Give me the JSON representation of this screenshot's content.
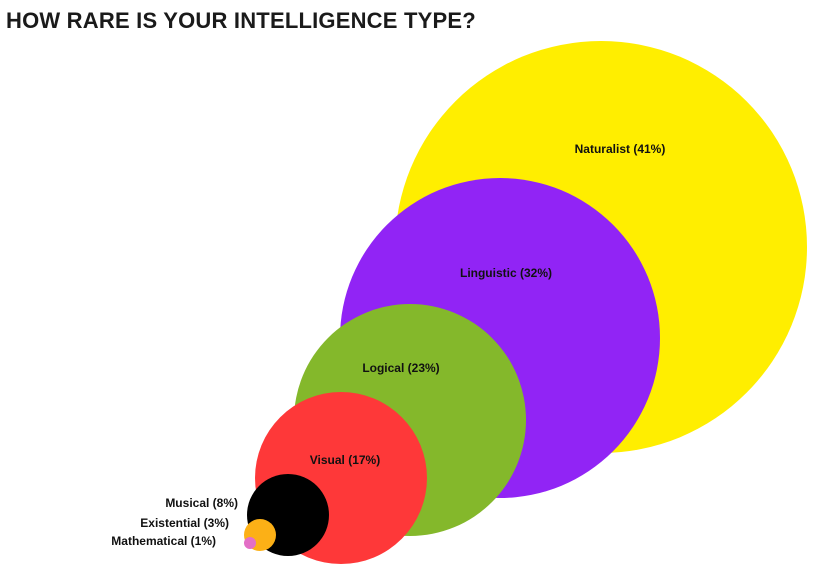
{
  "chart_data": {
    "type": "bubble",
    "title": "HOW RARE IS YOUR INTELLIGENCE TYPE?",
    "unit": "%",
    "series": [
      {
        "name": "Naturalist",
        "label": "Naturalist (41%)",
        "value": 41,
        "color": "#FFEE00",
        "label_side": "inside"
      },
      {
        "name": "Linguistic",
        "label": "Linguistic (32%)",
        "value": 32,
        "color": "#9124F5",
        "label_side": "inside"
      },
      {
        "name": "Logical",
        "label": "Logical (23%)",
        "value": 23,
        "color": "#84B82B",
        "label_side": "inside"
      },
      {
        "name": "Visual",
        "label": "Visual (17%)",
        "value": 17,
        "color": "#FE3839",
        "label_side": "inside"
      },
      {
        "name": "Musical",
        "label": "Musical (8%)",
        "value": 8,
        "color": "#000000",
        "label_side": "left"
      },
      {
        "name": "Existential",
        "label": "Existential (3%)",
        "value": 3,
        "color": "#FCB016",
        "label_side": "left"
      },
      {
        "name": "Mathematical",
        "label": "Mathematical (1%)",
        "value": 1,
        "color": "#E36FC6",
        "label_side": "left"
      }
    ]
  }
}
